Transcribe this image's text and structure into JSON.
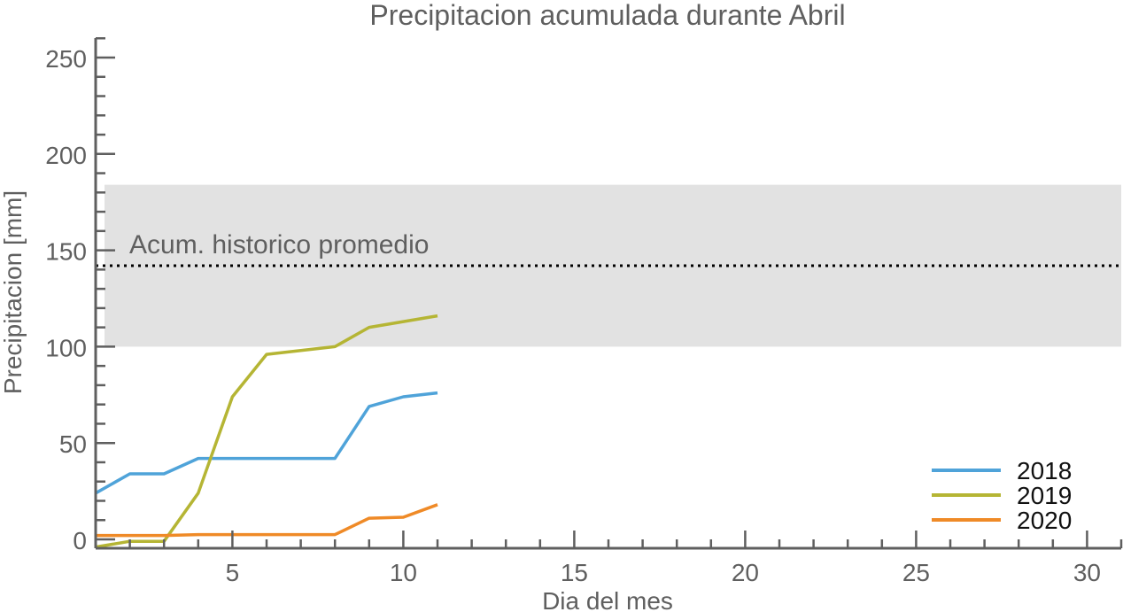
{
  "chart_data": {
    "type": "line",
    "title": "Precipitacion acumulada durante Abril",
    "xlabel": "Dia del mes",
    "ylabel": "Precipitacion [mm]",
    "xlim": [
      1,
      31
    ],
    "ylim": [
      0,
      260
    ],
    "xticks": [
      5,
      10,
      15,
      20,
      25,
      30
    ],
    "yticks": [
      0,
      50,
      100,
      150,
      200,
      250
    ],
    "grid": false,
    "legend_position": "bottom-right",
    "historical": {
      "label": "Acum. historico promedio",
      "mean": 142,
      "band_low": 100,
      "band_high": 184,
      "band_color": "#e2e2e2",
      "line_color": "#000000"
    },
    "series": [
      {
        "name": "2018",
        "color": "#4fa3d9",
        "x": [
          1,
          2,
          3,
          4,
          5,
          6,
          7,
          8,
          9,
          10,
          11
        ],
        "values": [
          24,
          34,
          34,
          42,
          42,
          42,
          42,
          42,
          69,
          74,
          76
        ]
      },
      {
        "name": "2019",
        "color": "#b5b534",
        "x": [
          1,
          2,
          3,
          4,
          5,
          6,
          7,
          8,
          9,
          10,
          11
        ],
        "values": [
          -4,
          -1,
          -1,
          24,
          74,
          96,
          98,
          100,
          110,
          113,
          116
        ]
      },
      {
        "name": "2020",
        "color": "#ef8a27",
        "x": [
          1,
          2,
          3,
          4,
          5,
          6,
          7,
          8,
          9,
          10,
          11
        ],
        "values": [
          2,
          2,
          2,
          2.5,
          2.5,
          2.5,
          2.5,
          2.5,
          11,
          11.5,
          18
        ]
      }
    ]
  }
}
